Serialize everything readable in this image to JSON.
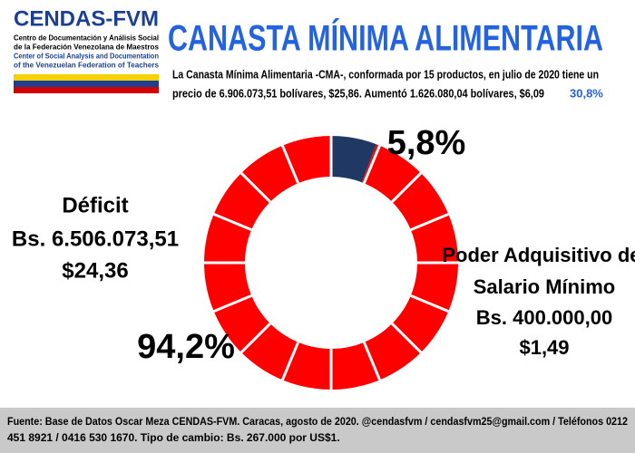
{
  "header": {
    "org": "CENDAS-FVM",
    "org_lines": [
      "Centro de Documentación y Análisis Social",
      "de la Federación Venezolana de Maestros",
      "Center of Social Analysis and Documentation",
      "of the Venezuelan Federation of Teachers"
    ]
  },
  "chart_data": {
    "type": "pie",
    "donut": true,
    "title": "CANASTA MÍNIMA ALIMENTARIA",
    "subtitle": [
      "La Canasta Mínima Alimentaria -CMA-, conformada por 15 productos, en julio de 2020 tiene un",
      "precio de 6.906.073,51 bolívares, $25,86.   Aumentó 1.626.080,04 bolívares,  $6,09",
      "30,8%"
    ],
    "values": [
      5.8,
      94.2
    ],
    "value_labels": [
      "5,8%",
      "94,2%"
    ],
    "colors": [
      "#1f3864",
      "#ff0000"
    ],
    "slice_labels": [
      [
        "Poder Adquisitivo del",
        "Salario Mínimo",
        "Bs. 400.000,00",
        "$1,49"
      ],
      [
        "Déficit",
        "Bs. 6.506.073,51",
        "$24,36"
      ]
    ]
  },
  "footer": [
    "Fuente: Base de Datos Oscar Meza CENDAS-FVM. Caracas, agosto de 2020. @cendasfvm  / cendasfvm25@gmail.com / Teléfonos 0212",
    "451 8921 / 0416 530 1670.  Tipo de cambio: Bs. 267.000 por US$1."
  ]
}
